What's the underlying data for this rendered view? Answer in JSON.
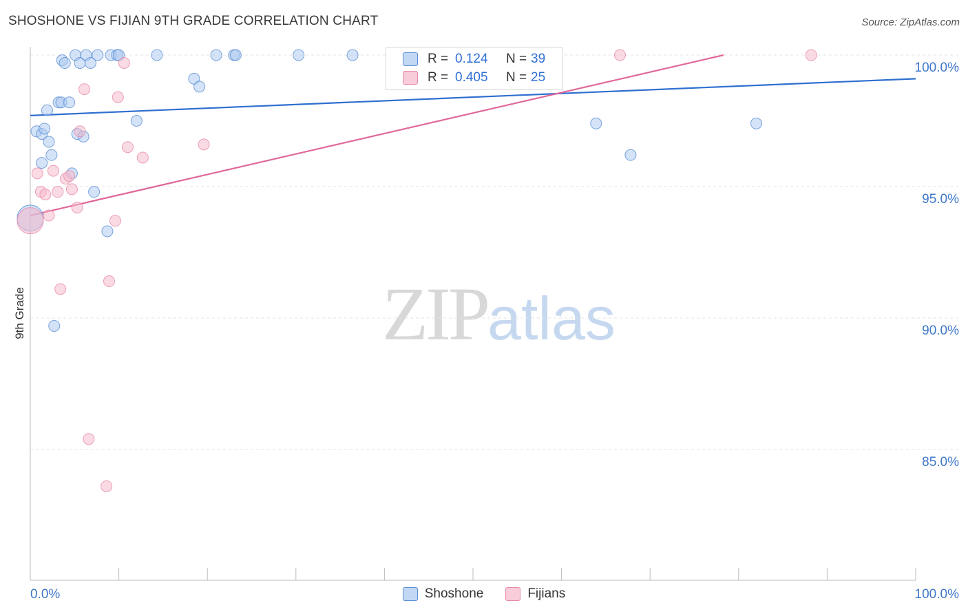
{
  "title": "SHOSHONE VS FIJIAN 9TH GRADE CORRELATION CHART",
  "source": "Source: ZipAtlas.com",
  "watermark": {
    "zip": "ZIP",
    "atlas": "atlas"
  },
  "colors": {
    "shoshone_fill": "#a9c8f0",
    "shoshone_stroke": "#5b8fd6",
    "shoshone_line": "#2f6fd0",
    "fijians_fill": "#f5b8ca",
    "fijians_stroke": "#e68aa8",
    "fijians_line": "#e0689a",
    "axis_label": "#3f78c9",
    "grid": "#e3e3e3"
  },
  "legend": {
    "rows": [
      {
        "r_label": "R =",
        "r_value": "0.124",
        "n_label": "N =",
        "n_value": "39"
      },
      {
        "r_label": "R =",
        "r_value": "0.405",
        "n_label": "N =",
        "n_value": "25"
      }
    ]
  },
  "chart_data": {
    "type": "scatter",
    "title": "SHOSHONE VS FIJIAN 9TH GRADE CORRELATION CHART",
    "xlabel": "",
    "ylabel": "9th Grade",
    "xlim": [
      0,
      100
    ],
    "ylim": [
      80.5,
      100.5
    ],
    "x_tick_labels": [
      "0.0%",
      "100.0%"
    ],
    "y_ticks": [
      100,
      95,
      90,
      85
    ],
    "y_tick_labels": [
      "100.0%",
      "95.0%",
      "90.0%",
      "85.0%"
    ],
    "grid": true,
    "series": [
      {
        "name": "Shoshone",
        "r": 0.124,
        "n": 39,
        "trend": {
          "x": [
            0,
            100
          ],
          "y": [
            97.7,
            99.1
          ]
        },
        "points": [
          {
            "x": 0.0,
            "y": 93.8,
            "big": true
          },
          {
            "x": 0.7,
            "y": 97.1
          },
          {
            "x": 1.3,
            "y": 95.9
          },
          {
            "x": 1.3,
            "y": 97.0
          },
          {
            "x": 1.6,
            "y": 97.2
          },
          {
            "x": 1.9,
            "y": 97.9
          },
          {
            "x": 2.1,
            "y": 96.7
          },
          {
            "x": 2.4,
            "y": 96.2
          },
          {
            "x": 2.7,
            "y": 89.7
          },
          {
            "x": 3.2,
            "y": 98.2
          },
          {
            "x": 3.5,
            "y": 98.2
          },
          {
            "x": 3.6,
            "y": 99.8
          },
          {
            "x": 3.9,
            "y": 99.7
          },
          {
            "x": 4.4,
            "y": 98.2
          },
          {
            "x": 4.7,
            "y": 95.5
          },
          {
            "x": 5.1,
            "y": 100.0
          },
          {
            "x": 5.3,
            "y": 97.0
          },
          {
            "x": 5.6,
            "y": 99.7
          },
          {
            "x": 6.0,
            "y": 96.9
          },
          {
            "x": 6.3,
            "y": 100.0
          },
          {
            "x": 6.8,
            "y": 99.7
          },
          {
            "x": 7.2,
            "y": 94.8
          },
          {
            "x": 7.6,
            "y": 100.0
          },
          {
            "x": 8.7,
            "y": 93.3
          },
          {
            "x": 9.1,
            "y": 100.0
          },
          {
            "x": 9.8,
            "y": 100.0
          },
          {
            "x": 10.0,
            "y": 100.0
          },
          {
            "x": 12.0,
            "y": 97.5
          },
          {
            "x": 14.3,
            "y": 100.0
          },
          {
            "x": 18.5,
            "y": 99.1
          },
          {
            "x": 19.1,
            "y": 98.8
          },
          {
            "x": 21.0,
            "y": 100.0
          },
          {
            "x": 23.0,
            "y": 100.0
          },
          {
            "x": 23.2,
            "y": 100.0
          },
          {
            "x": 30.3,
            "y": 100.0
          },
          {
            "x": 36.4,
            "y": 100.0
          },
          {
            "x": 63.9,
            "y": 97.4
          },
          {
            "x": 67.8,
            "y": 96.2
          },
          {
            "x": 82.0,
            "y": 97.4
          }
        ]
      },
      {
        "name": "Fijians",
        "r": 0.405,
        "n": 25,
        "trend": {
          "x": [
            0,
            78.3
          ],
          "y": [
            93.9,
            100.0
          ]
        },
        "points": [
          {
            "x": 0.0,
            "y": 93.7,
            "big": true
          },
          {
            "x": 0.8,
            "y": 95.5
          },
          {
            "x": 1.2,
            "y": 94.8
          },
          {
            "x": 1.7,
            "y": 94.7
          },
          {
            "x": 2.1,
            "y": 93.9
          },
          {
            "x": 2.6,
            "y": 95.6
          },
          {
            "x": 3.1,
            "y": 94.8
          },
          {
            "x": 3.4,
            "y": 91.1
          },
          {
            "x": 4.0,
            "y": 95.3
          },
          {
            "x": 4.4,
            "y": 95.4
          },
          {
            "x": 4.7,
            "y": 94.9
          },
          {
            "x": 5.3,
            "y": 94.2
          },
          {
            "x": 5.6,
            "y": 97.1
          },
          {
            "x": 6.1,
            "y": 98.7
          },
          {
            "x": 6.6,
            "y": 85.4
          },
          {
            "x": 8.6,
            "y": 83.6
          },
          {
            "x": 8.9,
            "y": 91.4
          },
          {
            "x": 9.6,
            "y": 93.7
          },
          {
            "x": 9.9,
            "y": 98.4
          },
          {
            "x": 10.6,
            "y": 99.7
          },
          {
            "x": 11.0,
            "y": 96.5
          },
          {
            "x": 12.7,
            "y": 96.1
          },
          {
            "x": 19.6,
            "y": 96.6
          },
          {
            "x": 66.6,
            "y": 100.0
          },
          {
            "x": 88.2,
            "y": 100.0
          }
        ]
      }
    ]
  },
  "bottom_legend": [
    {
      "label": "Shoshone"
    },
    {
      "label": "Fijians"
    }
  ]
}
